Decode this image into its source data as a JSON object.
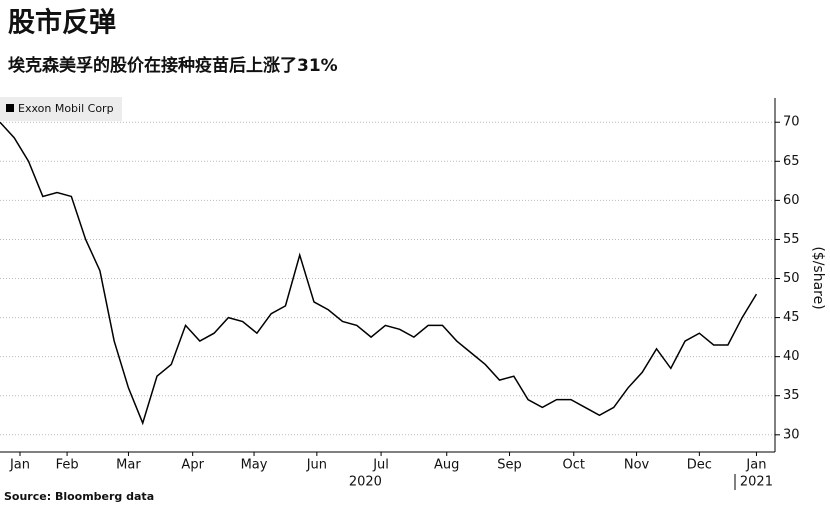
{
  "chart_data": {
    "type": "line",
    "title": "股市反弹",
    "subtitle": "埃克森美孚的股价在接种疫苗后上涨了31%",
    "y_label": "($/share)",
    "source": "Source: Bloomberg data",
    "series": [
      {
        "name": "Exxon Mobil Corp",
        "color": "#000000",
        "values": [
          70,
          68,
          65,
          60.5,
          61,
          60.5,
          55,
          51,
          42,
          36,
          31.5,
          37.5,
          39,
          44,
          42,
          43,
          45,
          44.5,
          43,
          45.5,
          46.5,
          53,
          47,
          46,
          44.5,
          44,
          42.5,
          44,
          43.5,
          42.5,
          44,
          44,
          42,
          40.5,
          39,
          37,
          37.5,
          34.5,
          33.5,
          34.5,
          34.5,
          33.5,
          32.5,
          33.5,
          36,
          38,
          41,
          38.5,
          42,
          43,
          41.5,
          41.5,
          45,
          48
        ]
      }
    ],
    "x": [
      0,
      1,
      2,
      3,
      4,
      5,
      6,
      7,
      8,
      9,
      10,
      11,
      12,
      13,
      14,
      15,
      16,
      17,
      18,
      19,
      20,
      21,
      22,
      23,
      24,
      25,
      26,
      27,
      28,
      29,
      30,
      31,
      32,
      33,
      34,
      35,
      36,
      37,
      38,
      39,
      40,
      41,
      42,
      43,
      44,
      45,
      46,
      47,
      48,
      49,
      50,
      51,
      52,
      53
    ],
    "xlim": [
      0,
      54.3
    ],
    "xticks": [
      {
        "value": 1.4,
        "label": "Jan"
      },
      {
        "value": 4.7,
        "label": "Feb"
      },
      {
        "value": 9.0,
        "label": "Mar"
      },
      {
        "value": 13.5,
        "label": "Apr"
      },
      {
        "value": 17.8,
        "label": "May"
      },
      {
        "value": 22.2,
        "label": "Jun"
      },
      {
        "value": 26.7,
        "label": "Jul"
      },
      {
        "value": 31.3,
        "label": "Aug"
      },
      {
        "value": 35.7,
        "label": "Sep"
      },
      {
        "value": 40.2,
        "label": "Oct"
      },
      {
        "value": 44.6,
        "label": "Nov"
      },
      {
        "value": 49.0,
        "label": "Dec"
      },
      {
        "value": 53.0,
        "label": "Jan"
      }
    ],
    "year_labels": [
      {
        "value": 25.6,
        "label": "2020"
      },
      {
        "value": 53.0,
        "label": "2021"
      }
    ],
    "ylim": [
      27.8,
      73.1
    ],
    "yticks": [
      30,
      35,
      40,
      45,
      50,
      55,
      60,
      65,
      70
    ],
    "grid": true
  }
}
